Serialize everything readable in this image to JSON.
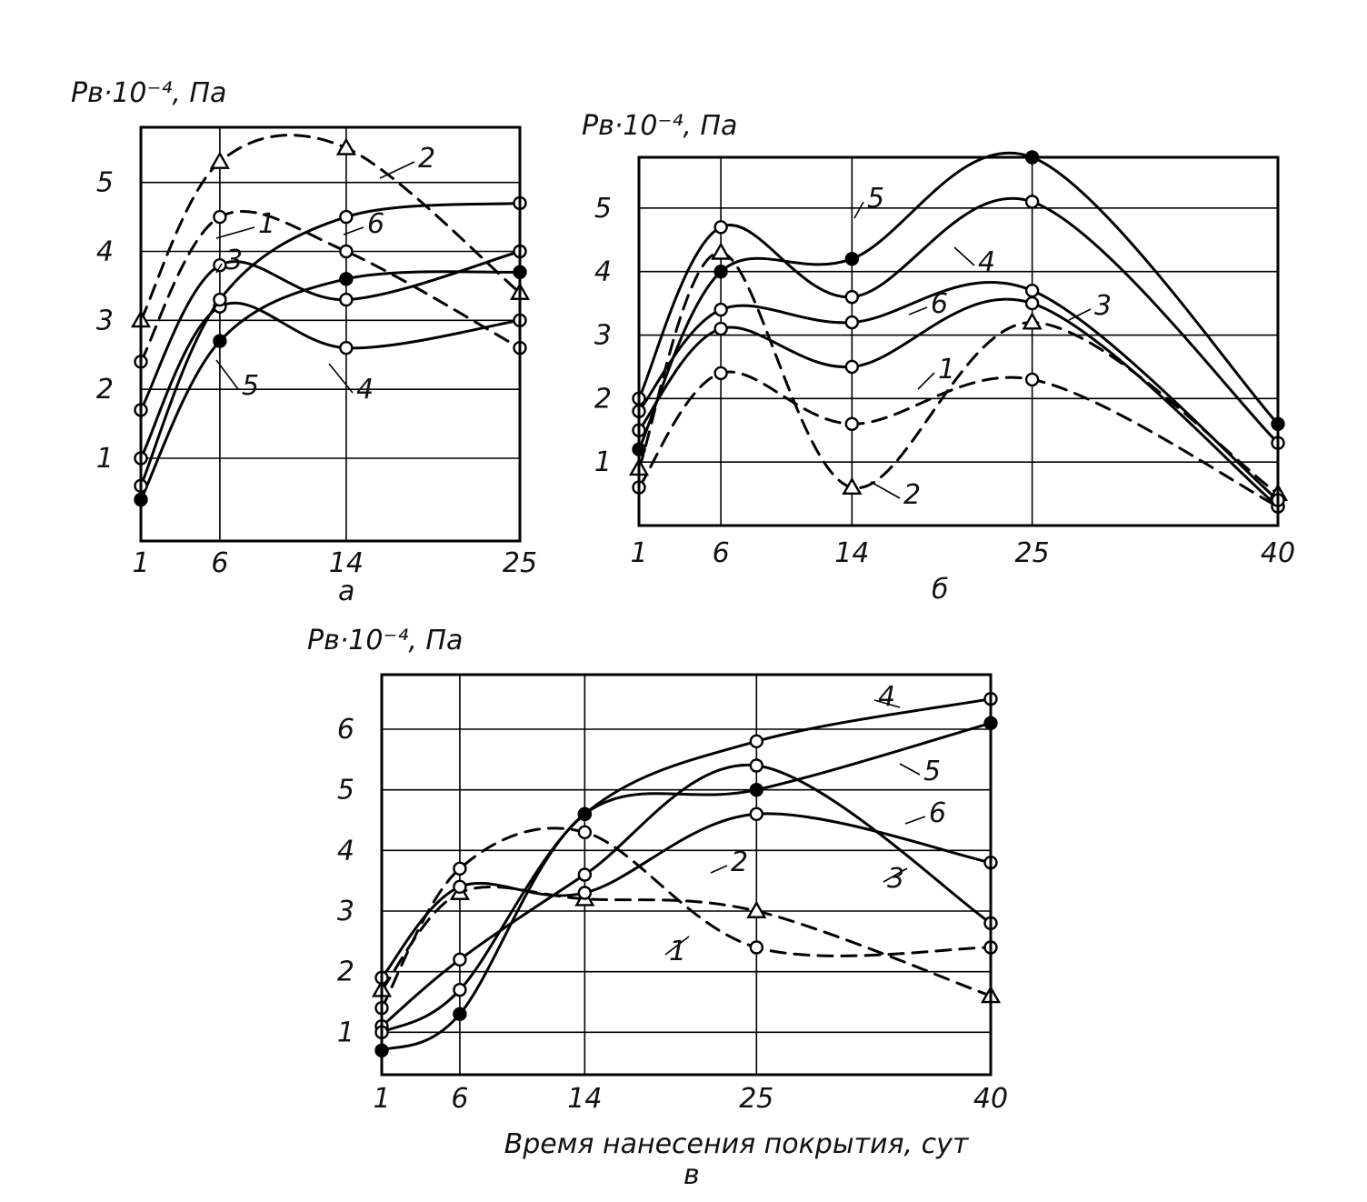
{
  "figure": {
    "xlabel": "Время нанесения покрытия, сут",
    "colors": {
      "ink": "#000000",
      "paper": "#ffffff"
    },
    "marker_shapes": {
      "1": "open-circle",
      "2": "triangle",
      "3": "open-circle",
      "4": "open-circle",
      "5": "filled-circle",
      "6": "open-circle"
    }
  },
  "chart_data": [
    {
      "type": "line",
      "panel": "а",
      "ylabel": "Pв·10⁻⁴, Па",
      "x_ticks": [
        "1",
        "6",
        "14",
        "25"
      ],
      "y_ticks": [
        "1",
        "2",
        "3",
        "4",
        "5"
      ],
      "xlim": [
        1,
        25
      ],
      "ylim": [
        -0.2,
        5.8
      ],
      "grid": true,
      "series": [
        {
          "name": "1",
          "style": "dashed",
          "x": [
            1,
            6,
            14,
            25
          ],
          "y": [
            2.4,
            4.5,
            4.0,
            2.6
          ]
        },
        {
          "name": "2",
          "style": "dashed",
          "x": [
            1,
            6,
            14,
            25
          ],
          "y": [
            3.0,
            5.3,
            5.5,
            3.4
          ]
        },
        {
          "name": "3",
          "style": "solid",
          "x": [
            1,
            6,
            14,
            25
          ],
          "y": [
            1.7,
            3.8,
            3.3,
            4.0
          ]
        },
        {
          "name": "4",
          "style": "solid",
          "x": [
            1,
            6,
            14,
            25
          ],
          "y": [
            1.0,
            3.2,
            2.6,
            3.0
          ]
        },
        {
          "name": "5",
          "style": "solid",
          "x": [
            1,
            6,
            14,
            25
          ],
          "y": [
            0.4,
            2.7,
            3.6,
            3.7
          ]
        },
        {
          "name": "6",
          "style": "solid",
          "x": [
            1,
            6,
            14,
            25
          ],
          "y": [
            0.6,
            3.3,
            4.5,
            4.7
          ]
        }
      ]
    },
    {
      "type": "line",
      "panel": "б",
      "ylabel": "Pв·10⁻⁴, Па",
      "x_ticks": [
        "1",
        "6",
        "14",
        "25",
        "40"
      ],
      "y_ticks": [
        "1",
        "2",
        "3",
        "4",
        "5"
      ],
      "xlim": [
        1,
        40
      ],
      "ylim": [
        0,
        5.8
      ],
      "grid": true,
      "series": [
        {
          "name": "1",
          "style": "dashed",
          "x": [
            1,
            6,
            14,
            25,
            40
          ],
          "y": [
            0.6,
            2.4,
            1.6,
            2.3,
            0.3
          ]
        },
        {
          "name": "2",
          "style": "dashed",
          "x": [
            1,
            6,
            14,
            25,
            40
          ],
          "y": [
            0.9,
            4.3,
            0.6,
            3.2,
            0.5
          ]
        },
        {
          "name": "3",
          "style": "solid",
          "x": [
            1,
            6,
            14,
            25,
            40
          ],
          "y": [
            1.5,
            3.1,
            2.5,
            3.5,
            0.3
          ]
        },
        {
          "name": "4",
          "style": "solid",
          "x": [
            1,
            6,
            14,
            25,
            40
          ],
          "y": [
            2.0,
            4.7,
            3.6,
            5.1,
            1.3
          ]
        },
        {
          "name": "5",
          "style": "solid",
          "x": [
            1,
            6,
            14,
            25,
            40
          ],
          "y": [
            1.2,
            4.0,
            4.2,
            5.8,
            1.6
          ]
        },
        {
          "name": "6",
          "style": "solid",
          "x": [
            1,
            6,
            14,
            25,
            40
          ],
          "y": [
            1.8,
            3.4,
            3.2,
            3.7,
            0.4
          ]
        }
      ]
    },
    {
      "type": "line",
      "panel": "в",
      "ylabel": "Pв·10⁻⁴, Па",
      "x_ticks": [
        "1",
        "6",
        "14",
        "25",
        "40"
      ],
      "y_ticks": [
        "1",
        "2",
        "3",
        "4",
        "5",
        "6"
      ],
      "xlim": [
        1,
        40
      ],
      "ylim": [
        0.3,
        6.9
      ],
      "grid": true,
      "series": [
        {
          "name": "1",
          "style": "dashed",
          "x": [
            1,
            6,
            14,
            25,
            40
          ],
          "y": [
            1.4,
            3.7,
            4.3,
            2.4,
            2.4
          ]
        },
        {
          "name": "2",
          "style": "dashed",
          "x": [
            1,
            6,
            14,
            25,
            40
          ],
          "y": [
            1.7,
            3.3,
            3.2,
            3.0,
            1.6
          ]
        },
        {
          "name": "3",
          "style": "solid",
          "x": [
            1,
            6,
            14,
            25,
            40
          ],
          "y": [
            1.1,
            2.2,
            3.6,
            5.4,
            2.8
          ]
        },
        {
          "name": "4",
          "style": "solid",
          "x": [
            1,
            6,
            14,
            25,
            40
          ],
          "y": [
            1.0,
            1.7,
            4.6,
            5.8,
            6.5
          ]
        },
        {
          "name": "5",
          "style": "solid",
          "x": [
            1,
            6,
            14,
            25,
            40
          ],
          "y": [
            0.7,
            1.3,
            4.6,
            5.0,
            6.1
          ]
        },
        {
          "name": "6",
          "style": "solid",
          "x": [
            1,
            6,
            14,
            25,
            40
          ],
          "y": [
            1.9,
            3.4,
            3.3,
            4.6,
            3.8
          ]
        }
      ]
    }
  ]
}
